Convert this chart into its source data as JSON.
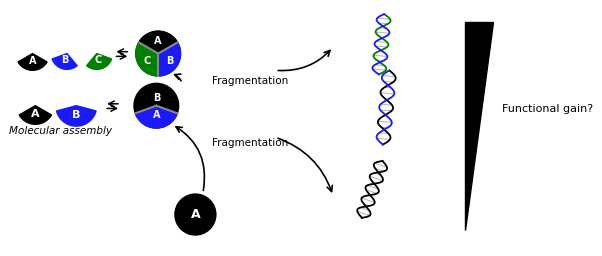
{
  "title": "Molecular assembly",
  "label_A": "A",
  "label_B": "B",
  "label_C": "C",
  "color_black": "#000000",
  "color_blue": "#1a1aff",
  "color_green": "#008000",
  "color_white": "#ffffff",
  "color_gray": "#888888",
  "fragmentation_text": "Fragmentation",
  "functional_gain_text": "Functional gain?",
  "background": "#ffffff"
}
